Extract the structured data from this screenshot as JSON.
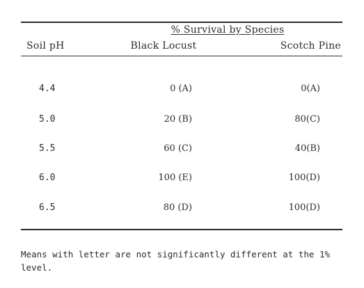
{
  "table": {
    "spanner_header": "% Survival by Species",
    "columns": [
      "Soil pH",
      "Black Locust",
      "Scotch Pine"
    ],
    "rows": [
      {
        "ph": "4.4",
        "black_locust": "0 (A)",
        "scotch_pine": "0(A)"
      },
      {
        "ph": "5.0",
        "black_locust": "20 (B)",
        "scotch_pine": "80(C)"
      },
      {
        "ph": "5.5",
        "black_locust": "60 (C)",
        "scotch_pine": "40(B)"
      },
      {
        "ph": "6.0",
        "black_locust": "100 (E)",
        "scotch_pine": "100(D)"
      },
      {
        "ph": "6.5",
        "black_locust": "80 (D)",
        "scotch_pine": "100(D)"
      }
    ],
    "footnote": "Means with letter are not significantly different at the 1% level."
  }
}
